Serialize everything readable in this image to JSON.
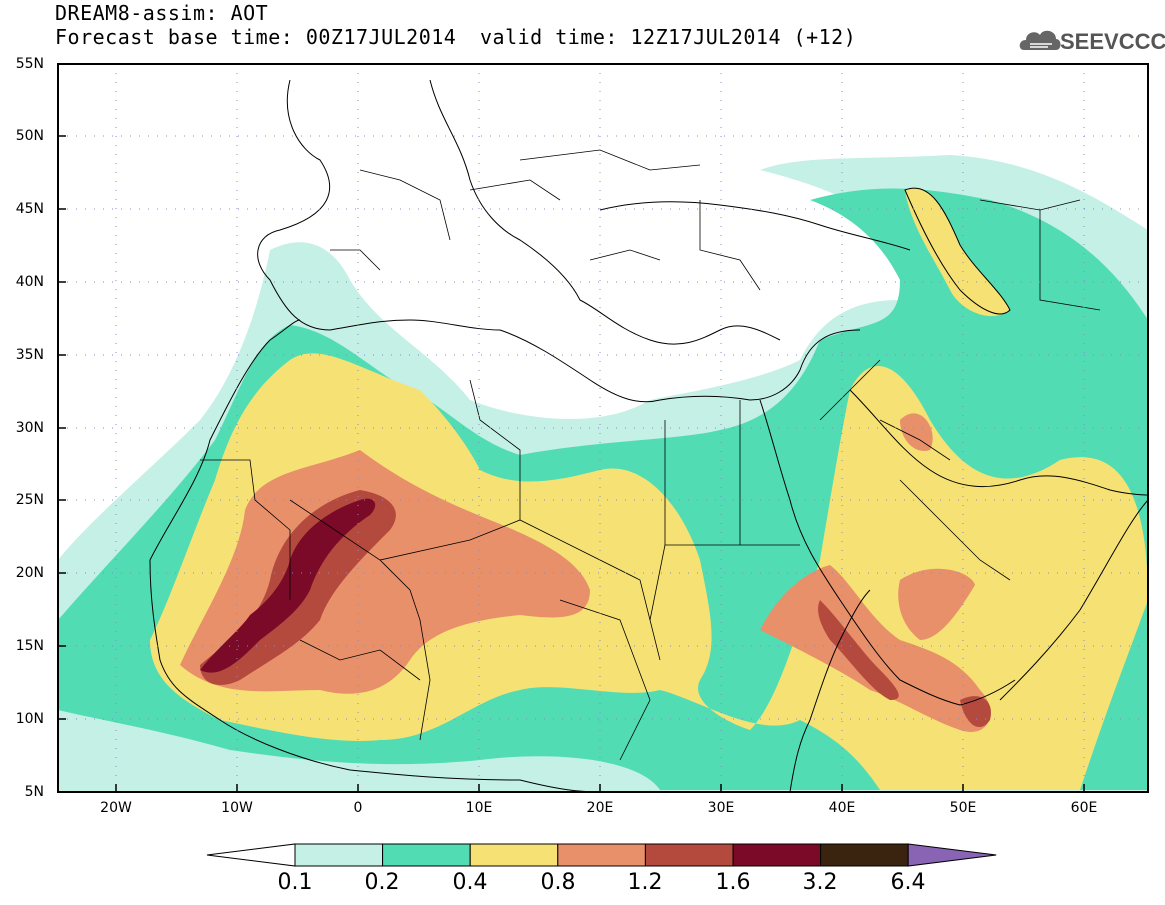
{
  "header": {
    "line1": "DREAM8-assim: AOT",
    "line2": "Forecast base time: 00Z17JUL2014",
    "line3": "valid time: 12Z17JUL2014 (+12)",
    "logo_text": "SEEVCCC"
  },
  "map": {
    "lat_labels": [
      "55N",
      "50N",
      "45N",
      "40N",
      "35N",
      "30N",
      "25N",
      "20N",
      "15N",
      "10N",
      "5N"
    ],
    "lon_labels": [
      "20W",
      "10W",
      "0",
      "10E",
      "20E",
      "30E",
      "40E",
      "50E",
      "60E"
    ]
  },
  "legend": {
    "labels": [
      "0.1",
      "0.2",
      "0.4",
      "0.8",
      "1.2",
      "1.6",
      "3.2",
      "6.4"
    ],
    "colors": [
      "#ffffff",
      "#c4f0e6",
      "#52dcb4",
      "#f6e274",
      "#e8906a",
      "#b44a3e",
      "#7a0a28",
      "#3a2410",
      "#8a64b4"
    ]
  }
}
